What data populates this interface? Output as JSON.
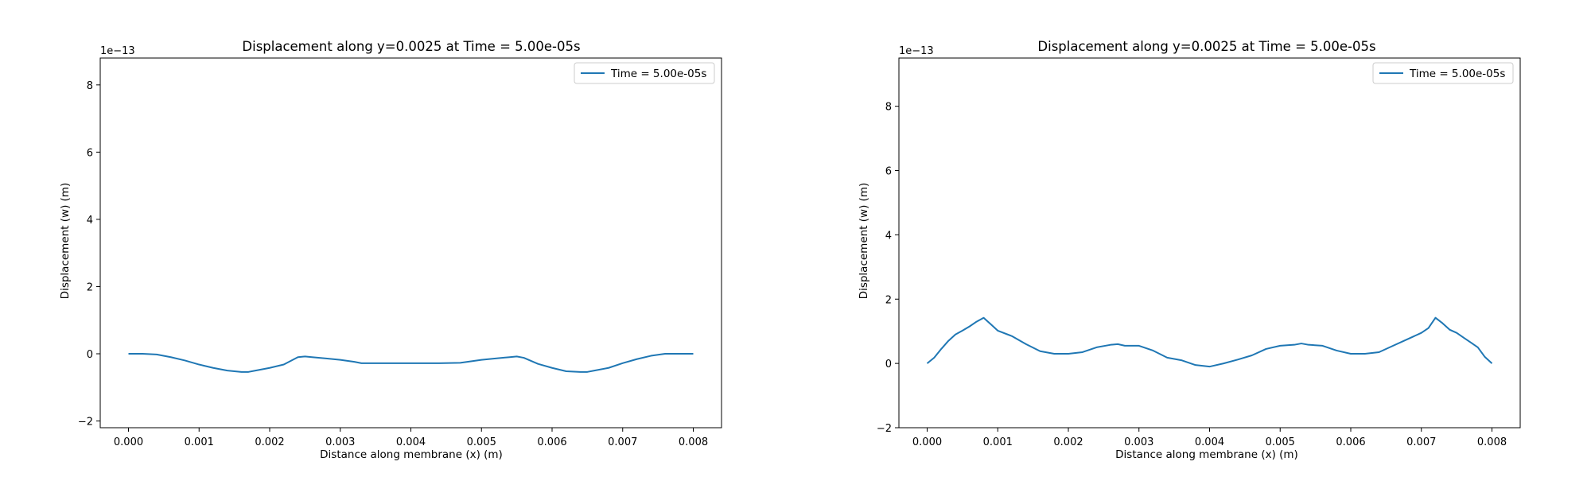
{
  "figure": {
    "colors": {
      "line": "#1f77b4",
      "axes": "#000000",
      "legend_border": "#cccccc",
      "background": "#ffffff"
    }
  },
  "chart_data": [
    {
      "type": "line",
      "title": "Displacement along y=0.0025 at Time = 5.00e-05s",
      "xlabel": "Distance along membrane (x) (m)",
      "ylabel": "Displacement (w) (m)",
      "offset_text": "1e−13",
      "xlim": [
        -0.0004,
        0.0084
      ],
      "ylim": [
        -2.2,
        8.8
      ],
      "xticks": [
        0.0,
        0.001,
        0.002,
        0.003,
        0.004,
        0.005,
        0.006,
        0.007,
        0.008
      ],
      "xtick_labels": [
        "0.000",
        "0.001",
        "0.002",
        "0.003",
        "0.004",
        "0.005",
        "0.006",
        "0.007",
        "0.008"
      ],
      "yticks": [
        -2,
        0,
        2,
        4,
        6,
        8
      ],
      "ytick_labels": [
        "−2",
        "0",
        "2",
        "4",
        "6",
        "8"
      ],
      "grid": false,
      "legend_position": "upper right",
      "series": [
        {
          "name": "Time = 5.00e-05s",
          "x": [
            0.0,
            0.0002,
            0.0004,
            0.0006,
            0.0008,
            0.001,
            0.0012,
            0.0014,
            0.0016,
            0.0017,
            0.0018,
            0.002,
            0.0022,
            0.0024,
            0.0025,
            0.0026,
            0.0028,
            0.003,
            0.0032,
            0.0033,
            0.0036,
            0.004,
            0.0044,
            0.0047,
            0.0048,
            0.005,
            0.0052,
            0.0054,
            0.0055,
            0.0056,
            0.0058,
            0.006,
            0.0062,
            0.0064,
            0.0065,
            0.0066,
            0.0068,
            0.007,
            0.0072,
            0.0074,
            0.0076,
            0.0078,
            0.008
          ],
          "y": [
            0.0,
            0.0,
            -0.02,
            -0.1,
            -0.2,
            -0.32,
            -0.42,
            -0.5,
            -0.54,
            -0.54,
            -0.5,
            -0.42,
            -0.32,
            -0.1,
            -0.08,
            -0.1,
            -0.14,
            -0.18,
            -0.24,
            -0.28,
            -0.28,
            -0.28,
            -0.28,
            -0.27,
            -0.24,
            -0.18,
            -0.14,
            -0.1,
            -0.08,
            -0.12,
            -0.3,
            -0.42,
            -0.52,
            -0.54,
            -0.54,
            -0.5,
            -0.42,
            -0.28,
            -0.16,
            -0.06,
            0.0,
            0.0,
            0.0
          ]
        }
      ]
    },
    {
      "type": "line",
      "title": "Displacement along y=0.0025 at Time = 5.00e-05s",
      "xlabel": "Distance along membrane (x) (m)",
      "ylabel": "Displacement (w) (m)",
      "offset_text": "1e−13",
      "xlim": [
        -0.0004,
        0.0084
      ],
      "ylim": [
        -2.0,
        9.5
      ],
      "xticks": [
        0.0,
        0.001,
        0.002,
        0.003,
        0.004,
        0.005,
        0.006,
        0.007,
        0.008
      ],
      "xtick_labels": [
        "0.000",
        "0.001",
        "0.002",
        "0.003",
        "0.004",
        "0.005",
        "0.006",
        "0.007",
        "0.008"
      ],
      "yticks": [
        -2,
        0,
        2,
        4,
        6,
        8
      ],
      "ytick_labels": [
        "−2",
        "0",
        "2",
        "4",
        "6",
        "8"
      ],
      "grid": false,
      "legend_position": "upper right",
      "series": [
        {
          "name": "Time = 5.00e-05s",
          "x": [
            0.0,
            0.0001,
            0.0002,
            0.0003,
            0.0004,
            0.0005,
            0.0006,
            0.0007,
            0.0008,
            0.0009,
            0.001,
            0.0012,
            0.0014,
            0.0016,
            0.0018,
            0.002,
            0.0022,
            0.0024,
            0.0026,
            0.0027,
            0.0028,
            0.003,
            0.0032,
            0.0034,
            0.0036,
            0.0038,
            0.004,
            0.0042,
            0.0044,
            0.0046,
            0.0048,
            0.005,
            0.0052,
            0.0053,
            0.0054,
            0.0056,
            0.0058,
            0.006,
            0.0062,
            0.0064,
            0.0066,
            0.0068,
            0.007,
            0.0071,
            0.0072,
            0.0073,
            0.0074,
            0.0075,
            0.0076,
            0.0077,
            0.0078,
            0.0079,
            0.008
          ],
          "y": [
            0.0,
            0.18,
            0.45,
            0.7,
            0.9,
            1.02,
            1.15,
            1.3,
            1.42,
            1.22,
            1.02,
            0.85,
            0.6,
            0.38,
            0.3,
            0.3,
            0.35,
            0.5,
            0.58,
            0.6,
            0.55,
            0.55,
            0.4,
            0.18,
            0.1,
            -0.05,
            -0.1,
            0.0,
            0.12,
            0.25,
            0.45,
            0.55,
            0.58,
            0.62,
            0.58,
            0.55,
            0.4,
            0.3,
            0.3,
            0.35,
            0.55,
            0.75,
            0.95,
            1.1,
            1.42,
            1.25,
            1.05,
            0.95,
            0.8,
            0.65,
            0.5,
            0.2,
            0.0
          ]
        }
      ]
    }
  ]
}
